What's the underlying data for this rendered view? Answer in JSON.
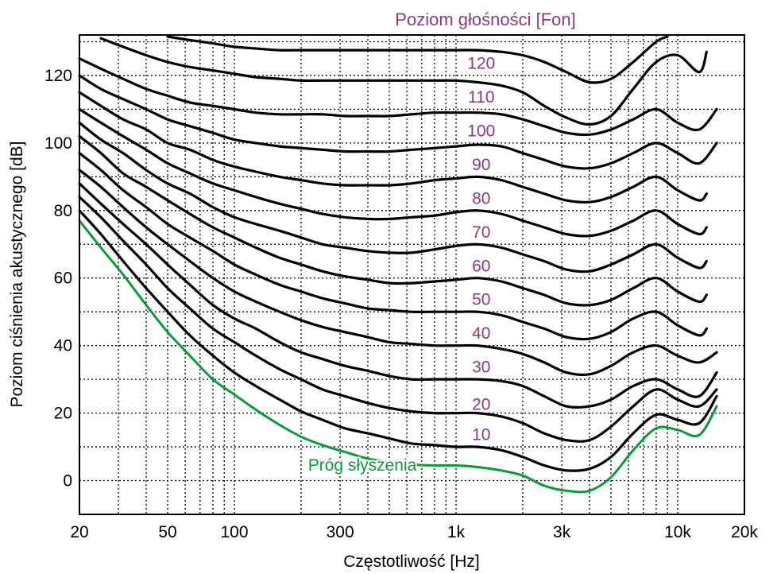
{
  "chart_data": {
    "type": "line",
    "title": "Poziom głośności [Fon]",
    "xlabel": "Częstotliwość [Hz]",
    "ylabel": "Poziom ciśnienia akustycznego [dB]",
    "x_scale": "log",
    "xlim": [
      20,
      20000
    ],
    "ylim": [
      -10,
      132
    ],
    "grid": true,
    "x_tick_values": [
      20,
      50,
      100,
      300,
      1000,
      3000,
      10000,
      20000
    ],
    "x_tick_labels": [
      "20",
      "50",
      "100",
      "300",
      "1k",
      "3k",
      "10k",
      "20k"
    ],
    "y_ticks": [
      0,
      20,
      40,
      60,
      80,
      100,
      120
    ],
    "colors": {
      "curves": "#000000",
      "threshold": "#0a9a3c",
      "labels": "#8b3a7e"
    },
    "series": [
      {
        "name": "Próg słyszenia",
        "label_freq": 215,
        "label_db": 3,
        "x": [
          20,
          25,
          31.5,
          40,
          50,
          63,
          80,
          100,
          125,
          160,
          200,
          250,
          315,
          400,
          500,
          630,
          800,
          1000,
          1250,
          1600,
          2000,
          2500,
          3150,
          4000,
          5000,
          6300,
          8000,
          10000,
          12500,
          15000
        ],
        "y": [
          77,
          69,
          61,
          52,
          44,
          37,
          30,
          25.5,
          21,
          16.5,
          13,
          10.5,
          8.5,
          6.5,
          5.5,
          4.8,
          4.5,
          4.5,
          4,
          3,
          1.5,
          -1.5,
          -3,
          -3,
          1,
          9,
          15.5,
          15,
          13.5,
          22
        ]
      },
      {
        "name": "10",
        "label_freq": 1300,
        "label_db": 12,
        "x": [
          20,
          25,
          31.5,
          40,
          50,
          63,
          80,
          100,
          125,
          160,
          200,
          250,
          315,
          400,
          500,
          630,
          800,
          1000,
          1250,
          1600,
          2000,
          2500,
          3150,
          4000,
          5000,
          6300,
          8000,
          10000,
          12500,
          15000
        ],
        "y": [
          80,
          73,
          65,
          57,
          50,
          43,
          37,
          32,
          28,
          24,
          20.5,
          18,
          15.5,
          14,
          12.5,
          11,
          10.5,
          10,
          10,
          9,
          7,
          4.5,
          3,
          3.5,
          7,
          14,
          19.5,
          18,
          17,
          25
        ]
      },
      {
        "name": "20",
        "label_freq": 1300,
        "label_db": 21,
        "x": [
          20,
          25,
          31.5,
          40,
          50,
          63,
          80,
          100,
          125,
          160,
          200,
          250,
          315,
          400,
          500,
          630,
          800,
          1000,
          1250,
          1600,
          2000,
          2500,
          3150,
          4000,
          5000,
          6300,
          8000,
          10000,
          12500,
          15000
        ],
        "y": [
          84,
          78,
          71,
          64,
          57,
          51,
          45,
          41,
          37,
          33,
          30,
          27,
          25,
          23,
          21.5,
          20.5,
          20,
          20,
          20,
          19,
          17,
          14,
          12,
          12,
          16,
          22,
          27,
          24,
          22,
          27
        ]
      },
      {
        "name": "30",
        "label_freq": 1300,
        "label_db": 32,
        "x": [
          20,
          25,
          31.5,
          40,
          50,
          63,
          80,
          100,
          125,
          160,
          200,
          250,
          315,
          400,
          500,
          630,
          800,
          1000,
          1250,
          1600,
          2000,
          2500,
          3150,
          4000,
          5000,
          6300,
          8000,
          10000,
          12500,
          15000
        ],
        "y": [
          88,
          82,
          76,
          70,
          64,
          58,
          52,
          48,
          45,
          41,
          38,
          36,
          34,
          32.5,
          31,
          30,
          30,
          30,
          30,
          29.5,
          28,
          25,
          22,
          22,
          24,
          28,
          30,
          27,
          25,
          32
        ]
      },
      {
        "name": "40",
        "label_freq": 1300,
        "label_db": 42,
        "x": [
          20,
          25,
          31.5,
          40,
          50,
          63,
          80,
          100,
          125,
          160,
          200,
          250,
          315,
          400,
          500,
          630,
          800,
          1000,
          1250,
          1600,
          2000,
          2500,
          3150,
          4000,
          5000,
          6300,
          8000,
          10000,
          12500,
          15000
        ],
        "y": [
          92,
          87,
          81,
          75,
          70,
          65,
          60,
          56,
          53,
          50,
          47.5,
          45.5,
          44,
          42.5,
          41,
          40.5,
          40,
          40,
          40,
          39,
          37.5,
          35,
          32,
          31.5,
          34,
          38,
          40,
          37,
          35,
          38
        ]
      },
      {
        "name": "50",
        "label_freq": 1300,
        "label_db": 52,
        "x": [
          20,
          25,
          31.5,
          40,
          50,
          63,
          80,
          100,
          125,
          160,
          200,
          250,
          315,
          400,
          500,
          630,
          800,
          1000,
          1250,
          1600,
          2000,
          2500,
          3150,
          4000,
          5000,
          6300,
          8000,
          10000,
          12500,
          13500
        ],
        "y": [
          97,
          92,
          86,
          81,
          76,
          72,
          68,
          64,
          61,
          58,
          56,
          54,
          52.5,
          51,
          50.5,
          50,
          50,
          50,
          50,
          49,
          47,
          45,
          42.5,
          42,
          44,
          48,
          50,
          46,
          43,
          45
        ]
      },
      {
        "name": "60",
        "label_freq": 1300,
        "label_db": 62,
        "x": [
          20,
          25,
          31.5,
          40,
          50,
          63,
          80,
          100,
          125,
          160,
          200,
          250,
          315,
          400,
          500,
          630,
          800,
          1000,
          1250,
          1600,
          2000,
          2500,
          3150,
          4000,
          5000,
          6300,
          8000,
          10000,
          12500,
          13500
        ],
        "y": [
          102,
          97,
          91,
          87,
          83,
          79,
          75,
          72,
          69,
          66,
          64,
          62,
          60.5,
          59.5,
          58.5,
          58.5,
          59,
          59.5,
          60,
          59,
          57,
          55,
          52.5,
          52,
          53.5,
          57,
          60,
          56,
          53,
          55
        ]
      },
      {
        "name": "70",
        "label_freq": 1300,
        "label_db": 72,
        "x": [
          20,
          25,
          31.5,
          40,
          50,
          63,
          80,
          100,
          125,
          160,
          200,
          250,
          315,
          400,
          500,
          630,
          800,
          1000,
          1250,
          1600,
          2000,
          2500,
          3150,
          4000,
          5000,
          6300,
          8000,
          10000,
          12500,
          13500
        ],
        "y": [
          106,
          101,
          97,
          92,
          88,
          85,
          81,
          78,
          76,
          74,
          72,
          70,
          69,
          68,
          67.5,
          67.5,
          68.5,
          69.5,
          70,
          69,
          67,
          65,
          62.5,
          62,
          64,
          67,
          70,
          66,
          63,
          65
        ]
      },
      {
        "name": "80",
        "label_freq": 1300,
        "label_db": 82,
        "x": [
          20,
          25,
          31.5,
          40,
          50,
          63,
          80,
          100,
          125,
          160,
          200,
          250,
          315,
          400,
          500,
          630,
          800,
          1000,
          1250,
          1600,
          2000,
          2500,
          3150,
          4000,
          5000,
          6300,
          8000,
          10000,
          12500,
          13500
        ],
        "y": [
          110,
          106,
          102,
          98,
          94,
          91,
          88,
          86,
          84,
          82,
          80.5,
          79,
          78,
          77.5,
          77.5,
          78,
          78.5,
          79.5,
          80,
          79,
          77,
          75,
          73,
          72.5,
          74,
          77,
          80,
          76,
          73,
          75
        ]
      },
      {
        "name": "90",
        "label_freq": 1300,
        "label_db": 92,
        "x": [
          20,
          25,
          31.5,
          40,
          50,
          63,
          80,
          100,
          125,
          160,
          200,
          250,
          315,
          400,
          500,
          630,
          800,
          1000,
          1250,
          1600,
          2000,
          2500,
          3150,
          4000,
          5000,
          6300,
          8000,
          10000,
          12500,
          13500
        ],
        "y": [
          115,
          111,
          107,
          104,
          100,
          98,
          95,
          93,
          91.5,
          90,
          89,
          88,
          87.5,
          87.5,
          87.5,
          88,
          89,
          89.5,
          90,
          89,
          87,
          85,
          83,
          82.5,
          84,
          87,
          90,
          86,
          83,
          85
        ]
      },
      {
        "name": "100",
        "label_freq": 1300,
        "label_db": 102,
        "x": [
          20,
          25,
          31.5,
          40,
          50,
          63,
          80,
          100,
          125,
          160,
          200,
          250,
          315,
          400,
          500,
          630,
          800,
          1000,
          1250,
          1600,
          2000,
          2500,
          3150,
          4000,
          5000,
          6300,
          8000,
          10000,
          12500,
          15000
        ],
        "y": [
          120,
          116,
          113,
          110,
          107,
          105,
          103,
          101,
          100,
          99,
          98.5,
          98,
          97.5,
          97.5,
          97.5,
          98,
          98.5,
          99,
          99.5,
          99,
          97,
          95,
          93,
          92.5,
          94,
          97,
          100,
          97,
          94,
          100
        ]
      },
      {
        "name": "110",
        "label_freq": 1300,
        "label_db": 112,
        "x": [
          20,
          25,
          31.5,
          40,
          50,
          63,
          80,
          100,
          125,
          160,
          200,
          250,
          315,
          400,
          500,
          630,
          800,
          1000,
          1250,
          1600,
          2000,
          2500,
          3150,
          4000,
          5000,
          6300,
          8000,
          10000,
          12500,
          15000
        ],
        "y": [
          125,
          122,
          119,
          116,
          114,
          112,
          111,
          110,
          109,
          108.5,
          108.5,
          108.5,
          108,
          108,
          108,
          108.5,
          109,
          109,
          109,
          108.5,
          107,
          105,
          103,
          102.5,
          104,
          107,
          110,
          106,
          104,
          110
        ]
      },
      {
        "name": "120",
        "label_freq": 1300,
        "label_db": 122,
        "x": [
          25,
          31.5,
          40,
          50,
          63,
          80,
          100,
          125,
          160,
          200,
          250,
          315,
          400,
          500,
          630,
          800,
          1000,
          1250,
          1600,
          2000,
          2500,
          3150,
          4000,
          5000,
          6300,
          8000,
          10000,
          12500,
          13500
        ],
        "y": [
          131,
          128.5,
          126,
          124,
          122.5,
          121.5,
          120.5,
          119.5,
          119,
          118.5,
          118.5,
          118.5,
          118.5,
          118.5,
          118.5,
          118.5,
          118.5,
          118,
          117,
          115,
          111,
          107.5,
          105.5,
          108,
          116,
          124,
          126,
          121,
          127
        ]
      },
      {
        "name": "",
        "x": [
          50,
          63,
          80,
          100,
          125,
          160,
          200,
          250,
          315,
          400,
          500,
          630,
          800,
          1000,
          1250,
          1600,
          2000,
          2500,
          3150,
          4000,
          5000,
          6300,
          8000,
          9000
        ],
        "y": [
          131.5,
          130.5,
          129.5,
          128.5,
          128,
          127.5,
          127.5,
          127.5,
          127.5,
          127.5,
          127.5,
          127.5,
          127.5,
          127.5,
          127.5,
          127,
          126,
          124,
          121,
          118,
          119,
          124,
          130,
          131.5
        ]
      }
    ]
  }
}
